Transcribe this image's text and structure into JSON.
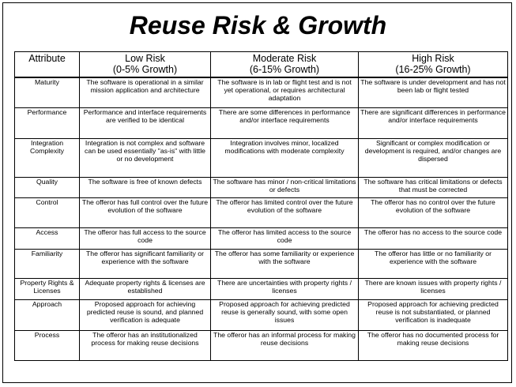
{
  "title": "Reuse Risk & Growth",
  "headers": [
    {
      "label": "Attribute",
      "sub": ""
    },
    {
      "label": "Low Risk",
      "sub": "(0-5% Growth)"
    },
    {
      "label": "Moderate Risk",
      "sub": "(6-15% Growth)"
    },
    {
      "label": "High Risk",
      "sub": "(16-25% Growth)"
    }
  ],
  "rows": [
    {
      "attribute": "Maturity",
      "low": "The software is operational in a similar mission application and architecture",
      "moderate": "The software is in lab or flight test and is not yet operational, or requires architectural adaptation",
      "high": "The software is under development and has not been lab or flight tested"
    },
    {
      "attribute": "Performance",
      "low": "Performance and interface requirements are verified to be identical",
      "moderate": "There are some differences in performance and/or interface requirements",
      "high": "There are significant differences in performance and/or interface requirements"
    },
    {
      "attribute": "Integration Complexity",
      "low": "Integration is not complex and software can be used essentially \"as-is\" with little or no development",
      "moderate": "Integration involves minor, localized modifications with moderate complexity",
      "high": "Significant or complex modification or development is required, and/or changes are dispersed"
    },
    {
      "attribute": "Quality",
      "low": "The software is free of known defects",
      "moderate": "The software has minor / non-critical limitations or defects",
      "high": "The software has critical limitations or defects that must be corrected"
    },
    {
      "attribute": "Control",
      "low": "The offeror has full control over the future evolution of the software",
      "moderate": "The offeror has limited control over the future evolution of the software",
      "high": "The offeror has no control over the future evolution of the software"
    },
    {
      "attribute": "Access",
      "low": "The offeror has full access to the source code",
      "moderate": "The offeror has limited access to the source code",
      "high": "The offeror has no access to the source code"
    },
    {
      "attribute": "Familiarity",
      "low": "The offeror has significant familiarity or experience with the software",
      "moderate": "The offeror has some familiarity or experience with the software",
      "high": "The offeror has little or no familiarity or experience with the software"
    },
    {
      "attribute": "Property Rights & Licenses",
      "low": "Adequate property rights & licenses are established",
      "moderate": "There are uncertainties with property rights / licenses",
      "high": "There are known issues with property rights / licenses"
    },
    {
      "attribute": "Approach",
      "low": "Proposed approach for achieving predicted reuse is sound, and planned verification is adequate",
      "moderate": "Proposed approach for achieving predicted reuse is generally sound, with some open issues",
      "high": "Proposed approach for achieving predicted reuse is not substantiated, or planned verification is inadequate"
    },
    {
      "attribute": "Process",
      "low": "The offeror has an institutionalized process for making reuse decisions",
      "moderate": "The offeror has an informal process for making reuse decisions",
      "high": "The offeror has no documented process for making reuse decisions"
    }
  ]
}
